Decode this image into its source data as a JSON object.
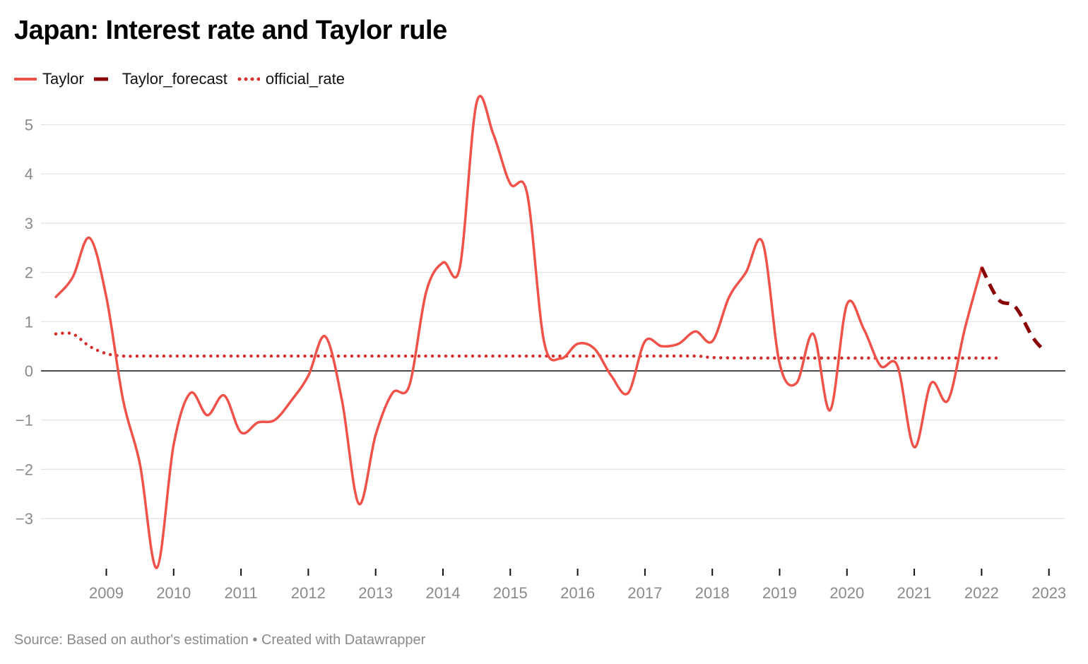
{
  "title": "Japan: Interest rate and Taylor rule",
  "legend": [
    {
      "label": "Taylor",
      "color": "#f0524a",
      "style": "solid"
    },
    {
      "label": "Taylor_forecast",
      "color": "#8b0000",
      "style": "dashed"
    },
    {
      "label": "official_rate",
      "color": "#d32f2f",
      "style": "dotted"
    }
  ],
  "footer": {
    "source": "Source: Based on author's estimation",
    "separator": "•",
    "created": "Created with Datawrapper"
  },
  "chart_data": {
    "type": "line",
    "title": "Japan: Interest rate and Taylor rule",
    "xlabel": "",
    "ylabel": "",
    "ylim": [
      -4,
      5.5
    ],
    "xlim": [
      2008.25,
      2023.0
    ],
    "grid": true,
    "legend_position": "top-left",
    "y_ticks": [
      5,
      4,
      3,
      2,
      1,
      0,
      -1,
      -2,
      -3
    ],
    "y_tick_labels": [
      "5",
      "4",
      "3",
      "2",
      "1",
      "0",
      "−1",
      "−2",
      "−3"
    ],
    "x_ticks": [
      2009,
      2010,
      2011,
      2012,
      2013,
      2014,
      2015,
      2016,
      2017,
      2018,
      2019,
      2020,
      2021,
      2022,
      2023
    ],
    "x_tick_labels": [
      "2009",
      "2010",
      "2011",
      "2012",
      "2013",
      "2014",
      "2015",
      "2016",
      "2017",
      "2018",
      "2019",
      "2020",
      "2021",
      "2022",
      "2023"
    ],
    "series": [
      {
        "name": "Taylor",
        "color": "#f0524a",
        "style": "solid",
        "x": [
          2008.25,
          2008.5,
          2008.75,
          2009.0,
          2009.25,
          2009.5,
          2009.75,
          2010.0,
          2010.25,
          2010.5,
          2010.75,
          2011.0,
          2011.25,
          2011.5,
          2011.75,
          2012.0,
          2012.25,
          2012.5,
          2012.75,
          2013.0,
          2013.25,
          2013.5,
          2013.75,
          2014.0,
          2014.25,
          2014.5,
          2014.75,
          2015.0,
          2015.25,
          2015.5,
          2015.75,
          2016.0,
          2016.25,
          2016.5,
          2016.75,
          2017.0,
          2017.25,
          2017.5,
          2017.75,
          2018.0,
          2018.25,
          2018.5,
          2018.75,
          2019.0,
          2019.25,
          2019.5,
          2019.75,
          2020.0,
          2020.25,
          2020.5,
          2020.75,
          2021.0,
          2021.25,
          2021.5,
          2021.75,
          2022.0
        ],
        "values": [
          1.5,
          1.9,
          2.7,
          1.5,
          -0.6,
          -1.9,
          -4.0,
          -1.5,
          -0.45,
          -0.9,
          -0.5,
          -1.25,
          -1.05,
          -1.0,
          -0.6,
          -0.1,
          0.7,
          -0.6,
          -2.7,
          -1.3,
          -0.45,
          -0.3,
          1.6,
          2.2,
          2.1,
          5.45,
          4.8,
          3.8,
          3.6,
          0.6,
          0.25,
          0.55,
          0.45,
          -0.1,
          -0.45,
          0.6,
          0.5,
          0.55,
          0.8,
          0.6,
          1.5,
          2.0,
          2.6,
          0.15,
          -0.25,
          0.75,
          -0.8,
          1.35,
          0.85,
          0.1,
          0.1,
          -1.55,
          -0.25,
          -0.6,
          0.85,
          2.1
        ]
      },
      {
        "name": "Taylor_forecast",
        "color": "#8b0000",
        "style": "dashed",
        "x": [
          2022.0,
          2022.25,
          2022.5,
          2022.75,
          2022.9
        ],
        "values": [
          2.1,
          1.45,
          1.3,
          0.7,
          0.45
        ]
      },
      {
        "name": "official_rate",
        "color": "#d32f2f",
        "style": "dotted",
        "x": [
          2008.25,
          2008.5,
          2008.75,
          2009.0,
          2009.25,
          2009.5,
          2010.0,
          2011.0,
          2012.0,
          2013.0,
          2014.0,
          2015.0,
          2016.0,
          2017.0,
          2017.75,
          2018.0,
          2018.5,
          2019.0,
          2020.0,
          2021.0,
          2022.0,
          2022.25
        ],
        "values": [
          0.75,
          0.75,
          0.5,
          0.35,
          0.3,
          0.3,
          0.3,
          0.3,
          0.3,
          0.3,
          0.3,
          0.3,
          0.3,
          0.3,
          0.3,
          0.27,
          0.26,
          0.26,
          0.26,
          0.26,
          0.26,
          0.26
        ]
      }
    ]
  }
}
